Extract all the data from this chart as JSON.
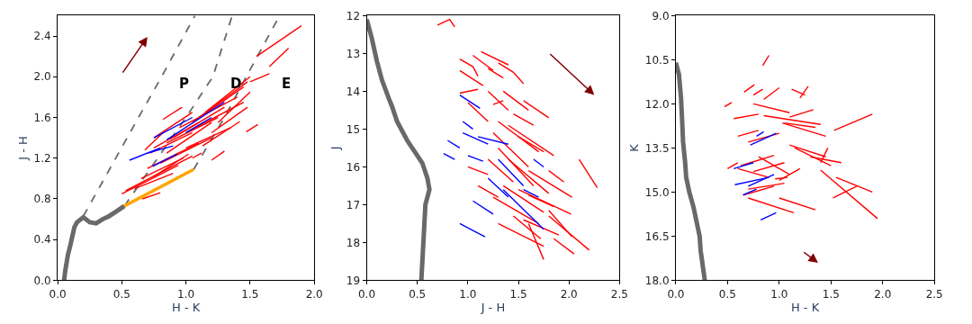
{
  "chart_data": [
    {
      "type": "line",
      "xlabel": "H - K",
      "ylabel": "J - H",
      "xlim": [
        0,
        2
      ],
      "ylim": [
        0,
        2.6
      ],
      "xticks": [
        {
          "value": 0,
          "label": "0.0"
        },
        {
          "value": 0.5,
          "label": "0.5"
        },
        {
          "value": 1,
          "label": "1.0"
        },
        {
          "value": 1.5,
          "label": "1.5"
        },
        {
          "value": 2,
          "label": "2.0"
        }
      ],
      "yticks": [
        {
          "value": 0,
          "label": "0.0"
        },
        {
          "value": 0.4,
          "label": "0.4"
        },
        {
          "value": 0.8,
          "label": "0.8"
        },
        {
          "value": 1.2,
          "label": "1.2"
        },
        {
          "value": 1.6,
          "label": "1.6"
        },
        {
          "value": 2.0,
          "label": "2.0"
        },
        {
          "value": 2.4,
          "label": "2.4"
        }
      ],
      "annotations": [
        "P",
        "D",
        "E"
      ],
      "series": [
        {
          "color": "#696969",
          "line_style": "dashed",
          "x": [
            0.2,
            0.63,
            0.81,
            1.07
          ],
          "values": [
            0.63,
            1.6,
            2.0,
            2.6
          ]
        },
        {
          "color": "#696969",
          "line_style": "dashed",
          "x": [
            0.52,
            1.0,
            1.21,
            1.36
          ],
          "values": [
            0.73,
            1.6,
            2.0,
            2.6
          ]
        },
        {
          "color": "#696969",
          "line_style": "dashed",
          "x": [
            1.06,
            1.3,
            1.47,
            1.73
          ],
          "values": [
            1.09,
            1.6,
            2.0,
            2.6
          ]
        },
        {
          "color": "#ff0000",
          "x": [
            0.5,
            0.94
          ],
          "values": [
            0.85,
            1.13
          ]
        },
        {
          "color": "#ff0000",
          "x": [
            0.53,
            1.05
          ],
          "values": [
            0.88,
            1.22
          ]
        },
        {
          "color": "#ff0000",
          "x": [
            0.65,
            0.98
          ],
          "values": [
            1.0,
            1.2
          ]
        },
        {
          "color": "#ff0000",
          "x": [
            0.7,
            1.1
          ],
          "values": [
            1.1,
            1.35
          ]
        },
        {
          "color": "#ff0000",
          "x": [
            0.72,
            1.05
          ],
          "values": [
            1.25,
            1.45
          ]
        },
        {
          "color": "#ff0000",
          "x": [
            0.75,
            1.1
          ],
          "values": [
            1.3,
            1.55
          ]
        },
        {
          "color": "#ff0000",
          "x": [
            0.8,
            1.2
          ],
          "values": [
            1.15,
            1.4
          ]
        },
        {
          "color": "#ff0000",
          "x": [
            0.85,
            1.25
          ],
          "values": [
            1.35,
            1.6
          ]
        },
        {
          "color": "#ff0000",
          "x": [
            0.9,
            1.3
          ],
          "values": [
            1.4,
            1.7
          ]
        },
        {
          "color": "#ff0000",
          "x": [
            0.95,
            1.4
          ],
          "values": [
            1.5,
            1.8
          ]
        },
        {
          "color": "#ff0000",
          "x": [
            1.0,
            1.45
          ],
          "values": [
            1.45,
            1.75
          ]
        },
        {
          "color": "#ff0000",
          "x": [
            1.05,
            1.45
          ],
          "values": [
            1.55,
            1.9
          ]
        },
        {
          "color": "#ff0000",
          "x": [
            1.1,
            1.48
          ],
          "values": [
            1.6,
            1.95
          ]
        },
        {
          "color": "#ff0000",
          "x": [
            1.15,
            1.5
          ],
          "values": [
            1.65,
            2.0
          ]
        },
        {
          "color": "#ff0000",
          "x": [
            0.75,
            1.05
          ],
          "values": [
            1.4,
            1.65
          ]
        },
        {
          "color": "#ff0000",
          "x": [
            0.82,
            0.97
          ],
          "values": [
            1.58,
            1.7
          ]
        },
        {
          "color": "#ff0000",
          "x": [
            1.0,
            1.35
          ],
          "values": [
            1.3,
            1.5
          ]
        },
        {
          "color": "#ff0000",
          "x": [
            1.13,
            1.42
          ],
          "values": [
            1.32,
            1.56
          ]
        },
        {
          "color": "#ff0000",
          "x": [
            1.2,
            1.48
          ],
          "values": [
            1.45,
            1.7
          ]
        },
        {
          "color": "#ff0000",
          "x": [
            0.6,
            0.9
          ],
          "values": [
            0.9,
            1.05
          ]
        },
        {
          "color": "#ff0000",
          "x": [
            0.66,
            0.8
          ],
          "values": [
            0.8,
            0.86
          ]
        },
        {
          "color": "#ff0000",
          "x": [
            1.2,
            1.3
          ],
          "values": [
            1.18,
            1.27
          ]
        },
        {
          "color": "#ff0000",
          "x": [
            1.05,
            1.12
          ],
          "values": [
            1.2,
            1.25
          ]
        },
        {
          "color": "#ff0000",
          "x": [
            1.55,
            1.9
          ],
          "values": [
            2.2,
            2.5
          ]
        },
        {
          "color": "#ff0000",
          "x": [
            1.65,
            1.8
          ],
          "values": [
            2.1,
            2.28
          ]
        },
        {
          "color": "#ff0000",
          "x": [
            1.5,
            1.65
          ],
          "values": [
            1.95,
            2.03
          ]
        },
        {
          "color": "#ff0000",
          "x": [
            1.47,
            1.56
          ],
          "values": [
            1.46,
            1.53
          ]
        },
        {
          "color": "#ff0000",
          "x": [
            0.68,
            0.82
          ],
          "values": [
            1.28,
            1.45
          ]
        },
        {
          "color": "#ff0000",
          "x": [
            0.85,
            1.2
          ],
          "values": [
            1.25,
            1.55
          ]
        },
        {
          "color": "#ff0000",
          "x": [
            1.25,
            1.5
          ],
          "values": [
            1.55,
            1.85
          ]
        },
        {
          "color": "#ff0000",
          "x": [
            0.75,
            1.02
          ],
          "values": [
            1.02,
            1.24
          ]
        },
        {
          "color": "#0000ff",
          "x": [
            0.56,
            0.8
          ],
          "values": [
            1.18,
            1.3
          ]
        },
        {
          "color": "#0000ff",
          "x": [
            0.75,
            1.05
          ],
          "values": [
            1.4,
            1.6
          ]
        },
        {
          "color": "#0000ff",
          "x": [
            0.85,
            1.3
          ],
          "values": [
            1.38,
            1.75
          ]
        },
        {
          "color": "#0000ff",
          "x": [
            0.7,
            0.9
          ],
          "values": [
            1.25,
            1.32
          ]
        },
        {
          "color": "#0000ff",
          "x": [
            0.74,
            0.93
          ],
          "values": [
            1.12,
            1.24
          ]
        },
        {
          "color": "#0000ff",
          "x": [
            1.0,
            1.2
          ],
          "values": [
            1.45,
            1.6
          ]
        },
        {
          "color": "#696969",
          "x": [
            0.05,
            0.06,
            0.08,
            0.1,
            0.13,
            0.15,
            0.2,
            0.25,
            0.3,
            0.35,
            0.4,
            0.45,
            0.52
          ],
          "values": [
            0,
            0.1,
            0.25,
            0.35,
            0.52,
            0.57,
            0.62,
            0.57,
            0.56,
            0.6,
            0.63,
            0.67,
            0.73
          ]
        },
        {
          "color": "#ffa500",
          "x": [
            0.52,
            1.06
          ],
          "values": [
            0.73,
            1.09
          ]
        }
      ]
    },
    {
      "type": "line",
      "xlabel": "J - H",
      "ylabel": "J",
      "xlim": [
        0,
        2.5
      ],
      "ylim": [
        19,
        12
      ],
      "xticks": [
        {
          "value": 0,
          "label": "0.0"
        },
        {
          "value": 0.5,
          "label": "0.5"
        },
        {
          "value": 1,
          "label": "1.0"
        },
        {
          "value": 1.5,
          "label": "1.5"
        },
        {
          "value": 2,
          "label": "2.0"
        },
        {
          "value": 2.5,
          "label": "2.5"
        }
      ],
      "yticks": [
        12,
        13,
        14,
        15,
        16,
        17,
        18,
        19
      ],
      "series": [
        {
          "color": "#ff0000",
          "x": [
            0.7,
            0.82,
            0.87
          ],
          "values": [
            12.25,
            12.1,
            12.3
          ]
        },
        {
          "color": "#ff0000",
          "x": [
            0.92,
            1.05,
            1.1
          ],
          "values": [
            13.15,
            13.35,
            13.6
          ]
        },
        {
          "color": "#ff0000",
          "x": [
            1.05,
            1.25
          ],
          "values": [
            13.05,
            13.45
          ]
        },
        {
          "color": "#ff0000",
          "x": [
            0.92,
            1.15
          ],
          "values": [
            13.45,
            13.85
          ]
        },
        {
          "color": "#ff0000",
          "x": [
            1.13,
            1.4
          ],
          "values": [
            12.95,
            13.3
          ]
        },
        {
          "color": "#ff0000",
          "x": [
            1.2,
            1.35
          ],
          "values": [
            13.4,
            13.65
          ]
        },
        {
          "color": "#ff0000",
          "x": [
            1.3,
            1.45,
            1.55
          ],
          "values": [
            13.25,
            13.5,
            13.8
          ]
        },
        {
          "color": "#ff0000",
          "x": [
            0.92,
            1.1
          ],
          "values": [
            14.05,
            13.95
          ]
        },
        {
          "color": "#ff0000",
          "x": [
            1.2,
            1.4
          ],
          "values": [
            14.0,
            14.5
          ]
        },
        {
          "color": "#ff0000",
          "x": [
            1.25,
            1.35
          ],
          "values": [
            14.35,
            14.25
          ]
        },
        {
          "color": "#ff0000",
          "x": [
            1.35,
            1.6
          ],
          "values": [
            14.0,
            14.5
          ]
        },
        {
          "color": "#ff0000",
          "x": [
            1.55,
            1.8
          ],
          "values": [
            14.25,
            14.7
          ]
        },
        {
          "color": "#ff0000",
          "x": [
            1.45,
            1.65
          ],
          "values": [
            14.6,
            14.9
          ]
        },
        {
          "color": "#ff0000",
          "x": [
            1.0,
            1.2
          ],
          "values": [
            14.3,
            14.8
          ]
        },
        {
          "color": "#ff0000",
          "x": [
            1.3,
            1.7
          ],
          "values": [
            14.8,
            15.6
          ]
        },
        {
          "color": "#ff0000",
          "x": [
            1.4,
            1.85
          ],
          "values": [
            14.9,
            15.7
          ]
        },
        {
          "color": "#ff0000",
          "x": [
            1.5,
            1.75
          ],
          "values": [
            15.2,
            15.6
          ]
        },
        {
          "color": "#ff0000",
          "x": [
            1.25,
            1.6
          ],
          "values": [
            15.1,
            16.0
          ]
        },
        {
          "color": "#ff0000",
          "x": [
            1.3,
            1.65
          ],
          "values": [
            15.5,
            16.5
          ]
        },
        {
          "color": "#ff0000",
          "x": [
            1.4,
            1.8
          ],
          "values": [
            15.8,
            16.7
          ]
        },
        {
          "color": "#ff0000",
          "x": [
            1.6,
            2.03
          ],
          "values": [
            16.1,
            16.8
          ]
        },
        {
          "color": "#ff0000",
          "x": [
            1.8,
            1.95
          ],
          "values": [
            16.1,
            16.4
          ]
        },
        {
          "color": "#ff0000",
          "x": [
            2.1,
            2.28
          ],
          "values": [
            15.8,
            16.55
          ]
        },
        {
          "color": "#ff0000",
          "x": [
            1.35,
            1.75
          ],
          "values": [
            16.5,
            17.2
          ]
        },
        {
          "color": "#ff0000",
          "x": [
            1.5,
            2.02
          ],
          "values": [
            16.6,
            17.25
          ]
        },
        {
          "color": "#ff0000",
          "x": [
            1.25,
            1.7
          ],
          "values": [
            16.8,
            17.5
          ]
        },
        {
          "color": "#ff0000",
          "x": [
            1.45,
            1.72
          ],
          "values": [
            17.3,
            17.9
          ]
        },
        {
          "color": "#ff0000",
          "x": [
            1.55,
            1.9
          ],
          "values": [
            17.4,
            17.8
          ]
        },
        {
          "color": "#ff0000",
          "x": [
            1.8,
            2.03
          ],
          "values": [
            17.15,
            17.85
          ]
        },
        {
          "color": "#ff0000",
          "x": [
            1.8,
            2.2
          ],
          "values": [
            17.3,
            18.2
          ]
        },
        {
          "color": "#ff0000",
          "x": [
            1.6,
            1.75
          ],
          "values": [
            17.5,
            18.45
          ]
        },
        {
          "color": "#ff0000",
          "x": [
            1.3,
            1.75
          ],
          "values": [
            17.5,
            18.1
          ]
        },
        {
          "color": "#ff0000",
          "x": [
            1.85,
            2.05
          ],
          "values": [
            17.9,
            18.3
          ]
        },
        {
          "color": "#ff0000",
          "x": [
            1.2,
            1.45
          ],
          "values": [
            15.8,
            16.4
          ]
        },
        {
          "color": "#ff0000",
          "x": [
            1.1,
            1.3
          ],
          "values": [
            16.5,
            16.8
          ]
        },
        {
          "color": "#ff0000",
          "x": [
            1.0,
            1.2
          ],
          "values": [
            16.0,
            16.2
          ]
        },
        {
          "color": "#ff0000",
          "x": [
            1.6,
            1.85
          ],
          "values": [
            16.75,
            17.05
          ]
        },
        {
          "color": "#0000ff",
          "x": [
            0.92,
            1.12
          ],
          "values": [
            14.1,
            14.45
          ]
        },
        {
          "color": "#0000ff",
          "x": [
            0.95,
            1.05
          ],
          "values": [
            14.8,
            15.0
          ]
        },
        {
          "color": "#0000ff",
          "x": [
            0.95,
            1.2
          ],
          "values": [
            15.1,
            15.4
          ]
        },
        {
          "color": "#0000ff",
          "x": [
            0.8,
            0.92
          ],
          "values": [
            15.3,
            15.5
          ]
        },
        {
          "color": "#0000ff",
          "x": [
            0.76,
            0.87
          ],
          "values": [
            15.65,
            15.8
          ]
        },
        {
          "color": "#0000ff",
          "x": [
            1.0,
            1.15
          ],
          "values": [
            15.7,
            15.85
          ]
        },
        {
          "color": "#0000ff",
          "x": [
            1.1,
            1.4
          ],
          "values": [
            15.2,
            15.4
          ]
        },
        {
          "color": "#0000ff",
          "x": [
            1.3,
            1.55
          ],
          "values": [
            15.8,
            16.5
          ]
        },
        {
          "color": "#0000ff",
          "x": [
            1.2,
            1.4
          ],
          "values": [
            16.3,
            16.8
          ]
        },
        {
          "color": "#0000ff",
          "x": [
            1.05,
            1.25
          ],
          "values": [
            16.9,
            17.25
          ]
        },
        {
          "color": "#0000ff",
          "x": [
            0.92,
            1.17
          ],
          "values": [
            17.5,
            17.85
          ]
        },
        {
          "color": "#0000ff",
          "x": [
            1.35,
            1.75
          ],
          "values": [
            16.6,
            17.65
          ]
        },
        {
          "color": "#0000ff",
          "x": [
            1.55,
            1.7
          ],
          "values": [
            16.6,
            16.8
          ]
        },
        {
          "color": "#0000ff",
          "x": [
            1.65,
            1.75
          ],
          "values": [
            15.8,
            16.0
          ]
        },
        {
          "color": "#696969",
          "x": [
            0,
            0.05,
            0.1,
            0.15,
            0.22,
            0.25,
            0.3,
            0.4,
            0.5,
            0.55,
            0.6,
            0.62,
            0.58,
            0.57,
            0.56,
            0.55,
            0.54
          ],
          "values": [
            12.1,
            12.6,
            13.2,
            13.7,
            14.2,
            14.4,
            14.8,
            15.3,
            15.7,
            15.9,
            16.3,
            16.6,
            17,
            17.5,
            18,
            18.5,
            19
          ]
        }
      ]
    },
    {
      "type": "line",
      "xlabel": "H - K",
      "ylabel": "K",
      "xlim": [
        0,
        2.5
      ],
      "ylim": [
        18,
        9
      ],
      "xticks": [
        {
          "value": 0,
          "label": "0.0"
        },
        {
          "value": 0.5,
          "label": "0.5"
        },
        {
          "value": 1,
          "label": "1.0"
        },
        {
          "value": 1.5,
          "label": "1.5"
        },
        {
          "value": 2,
          "label": "2.0"
        },
        {
          "value": 2.5,
          "label": "2.5"
        }
      ],
      "yticks": [
        {
          "value": 9,
          "label": "9.0"
        },
        {
          "value": 10.5,
          "label": "10.5"
        },
        {
          "value": 12,
          "label": "12.0"
        },
        {
          "value": 13.5,
          "label": "13.5"
        },
        {
          "value": 15,
          "label": "15.0"
        },
        {
          "value": 16.5,
          "label": "16.5"
        },
        {
          "value": 18,
          "label": "18.0"
        }
      ],
      "series": [
        {
          "color": "#ff0000",
          "x": [
            0.84,
            0.9
          ],
          "values": [
            10.7,
            10.35
          ]
        },
        {
          "color": "#ff0000",
          "x": [
            0.66,
            0.76
          ],
          "values": [
            11.6,
            11.35
          ]
        },
        {
          "color": "#ff0000",
          "x": [
            0.75,
            0.84
          ],
          "values": [
            11.7,
            11.5
          ]
        },
        {
          "color": "#ff0000",
          "x": [
            0.85,
            1.0
          ],
          "values": [
            11.85,
            11.45
          ]
        },
        {
          "color": "#ff0000",
          "x": [
            1.12,
            1.25
          ],
          "values": [
            11.5,
            11.7
          ]
        },
        {
          "color": "#ff0000",
          "x": [
            1.2,
            1.28
          ],
          "values": [
            11.8,
            11.4
          ]
        },
        {
          "color": "#ff0000",
          "x": [
            0.47,
            0.54
          ],
          "values": [
            12.1,
            11.95
          ]
        },
        {
          "color": "#ff0000",
          "x": [
            0.75,
            1.1
          ],
          "values": [
            12.0,
            12.3
          ]
        },
        {
          "color": "#ff0000",
          "x": [
            0.85,
            1.4
          ],
          "values": [
            12.4,
            12.7
          ]
        },
        {
          "color": "#ff0000",
          "x": [
            1.1,
            1.33
          ],
          "values": [
            12.45,
            12.2
          ]
        },
        {
          "color": "#ff0000",
          "x": [
            0.56,
            0.8
          ],
          "values": [
            12.5,
            12.35
          ]
        },
        {
          "color": "#ff0000",
          "x": [
            1.05,
            1.35
          ],
          "values": [
            12.65,
            12.8
          ]
        },
        {
          "color": "#ff0000",
          "x": [
            1.03,
            1.45
          ],
          "values": [
            12.65,
            13.1
          ]
        },
        {
          "color": "#ff0000",
          "x": [
            1.53,
            1.9
          ],
          "values": [
            12.9,
            12.35
          ]
        },
        {
          "color": "#ff0000",
          "x": [
            0.6,
            0.8
          ],
          "values": [
            13.1,
            12.9
          ]
        },
        {
          "color": "#ff0000",
          "x": [
            0.7,
            1.0
          ],
          "values": [
            13.3,
            13.0
          ]
        },
        {
          "color": "#ff0000",
          "x": [
            1.1,
            1.45
          ],
          "values": [
            13.4,
            13.8
          ]
        },
        {
          "color": "#ff0000",
          "x": [
            1.15,
            1.5
          ],
          "values": [
            13.5,
            14.1
          ]
        },
        {
          "color": "#ff0000",
          "x": [
            1.3,
            1.6
          ],
          "values": [
            13.8,
            14.0
          ]
        },
        {
          "color": "#ff0000",
          "x": [
            1.4,
            1.47
          ],
          "values": [
            14.0,
            13.5
          ]
        },
        {
          "color": "#ff0000",
          "x": [
            0.5,
            0.6
          ],
          "values": [
            14.2,
            14.0
          ]
        },
        {
          "color": "#ff0000",
          "x": [
            0.6,
            0.9
          ],
          "values": [
            14.2,
            14.5
          ]
        },
        {
          "color": "#ff0000",
          "x": [
            0.75,
            1.05
          ],
          "values": [
            14.3,
            14.0
          ]
        },
        {
          "color": "#ff0000",
          "x": [
            0.96,
            1.08
          ],
          "values": [
            14.55,
            14.5
          ]
        },
        {
          "color": "#ff0000",
          "x": [
            1.0,
            1.2
          ],
          "values": [
            14.6,
            14.2
          ]
        },
        {
          "color": "#ff0000",
          "x": [
            0.7,
            1.05
          ],
          "values": [
            14.9,
            14.7
          ]
        },
        {
          "color": "#ff0000",
          "x": [
            0.65,
            0.95
          ],
          "values": [
            15.1,
            14.8
          ]
        },
        {
          "color": "#ff0000",
          "x": [
            0.7,
            1.14
          ],
          "values": [
            15.2,
            15.7
          ]
        },
        {
          "color": "#ff0000",
          "x": [
            1.0,
            1.35
          ],
          "values": [
            15.2,
            15.6
          ]
        },
        {
          "color": "#ff0000",
          "x": [
            1.4,
            1.95
          ],
          "values": [
            14.25,
            15.9
          ]
        },
        {
          "color": "#ff0000",
          "x": [
            1.55,
            1.9
          ],
          "values": [
            14.5,
            15.0
          ]
        },
        {
          "color": "#ff0000",
          "x": [
            1.52,
            1.75
          ],
          "values": [
            15.2,
            14.8
          ]
        },
        {
          "color": "#ff0000",
          "x": [
            0.63,
            0.95
          ],
          "values": [
            14.1,
            13.75
          ]
        },
        {
          "color": "#ff0000",
          "x": [
            0.8,
            1.1
          ],
          "values": [
            13.8,
            14.4
          ]
        },
        {
          "color": "#0000ff",
          "x": [
            0.78,
            0.85
          ],
          "values": [
            13.1,
            12.95
          ]
        },
        {
          "color": "#0000ff",
          "x": [
            0.72,
            0.97
          ],
          "values": [
            13.4,
            13.0
          ]
        },
        {
          "color": "#0000ff",
          "x": [
            0.56,
            0.75
          ],
          "values": [
            14.2,
            14.0
          ]
        },
        {
          "color": "#0000ff",
          "x": [
            0.57,
            0.9
          ],
          "values": [
            14.75,
            14.5
          ]
        },
        {
          "color": "#0000ff",
          "x": [
            0.7,
            0.95
          ],
          "values": [
            14.8,
            14.4
          ]
        },
        {
          "color": "#0000ff",
          "x": [
            0.65,
            0.78
          ],
          "values": [
            15.1,
            14.9
          ]
        },
        {
          "color": "#0000ff",
          "x": [
            0.82,
            0.97
          ],
          "values": [
            15.95,
            15.7
          ]
        },
        {
          "color": "#696969",
          "x": [
            0,
            0.03,
            0.05,
            0.06,
            0.07,
            0.09,
            0.1,
            0.13,
            0.17,
            0.2,
            0.23,
            0.24,
            0.26,
            0.28
          ],
          "values": [
            10.6,
            11,
            11.8,
            12.5,
            13.3,
            14,
            14.5,
            15,
            15.5,
            16,
            16.5,
            17,
            17.5,
            18
          ]
        }
      ]
    }
  ]
}
